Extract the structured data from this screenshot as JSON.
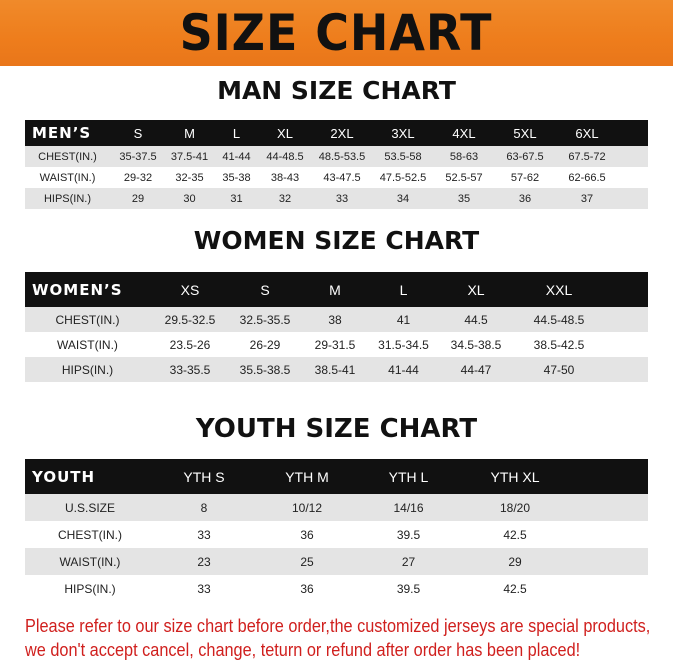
{
  "banner_title": "SIZE CHART",
  "men": {
    "title": "MAN SIZE CHART",
    "header": [
      "MEN’S",
      "S",
      "M",
      "L",
      "XL",
      "2XL",
      "3XL",
      "4XL",
      "5XL",
      "6XL"
    ],
    "rows": [
      [
        "CHEST(IN.)",
        "35-37.5",
        "37.5-41",
        "41-44",
        "44-48.5",
        "48.5-53.5",
        "53.5-58",
        "58-63",
        "63-67.5",
        "67.5-72"
      ],
      [
        "WAIST(IN.)",
        "29-32",
        "32-35",
        "35-38",
        "38-43",
        "43-47.5",
        "47.5-52.5",
        "52.5-57",
        "57-62",
        "62-66.5"
      ],
      [
        "HIPS(IN.)",
        "29",
        "30",
        "31",
        "32",
        "33",
        "34",
        "35",
        "36",
        "37"
      ]
    ]
  },
  "women": {
    "title": "WOMEN SIZE CHART",
    "header": [
      "WOMEN’S",
      "XS",
      "S",
      "M",
      "L",
      "XL",
      "XXL"
    ],
    "rows": [
      [
        "CHEST(IN.)",
        "29.5-32.5",
        "32.5-35.5",
        "38",
        "41",
        "44.5",
        "44.5-48.5"
      ],
      [
        "WAIST(IN.)",
        "23.5-26",
        "26-29",
        "29-31.5",
        "31.5-34.5",
        "34.5-38.5",
        "38.5-42.5"
      ],
      [
        "HIPS(IN.)",
        "33-35.5",
        "35.5-38.5",
        "38.5-41",
        "41-44",
        "44-47",
        "47-50"
      ]
    ]
  },
  "youth": {
    "title": "YOUTH SIZE CHART",
    "header": [
      "YOUTH",
      "YTH S",
      "YTH M",
      "YTH L",
      "YTH XL"
    ],
    "rows": [
      [
        "U.S.SIZE",
        "8",
        "10/12",
        "14/16",
        "18/20"
      ],
      [
        "CHEST(IN.)",
        "33",
        "36",
        "39.5",
        "42.5"
      ],
      [
        "WAIST(IN.)",
        "23",
        "25",
        "27",
        "29"
      ],
      [
        "HIPS(IN.)",
        "33",
        "36",
        "39.5",
        "42.5"
      ]
    ]
  },
  "notice": [
    "Please refer to our size chart before order,the customized jerseys are special products,",
    "we don't accept cancel, change, teturn or refund after order has been placed!"
  ]
}
